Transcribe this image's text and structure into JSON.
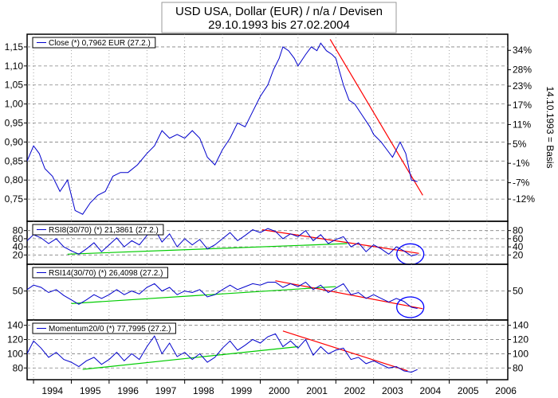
{
  "title_line1": "USD USA, Dollar (EUR) / n/a / Devisen",
  "title_line2": "29.10.1993 bis 27.02.2004",
  "right_axis_label": "14.10.1993 = Basis",
  "colors": {
    "price": "#0000cc",
    "trend_down": "#ff0000",
    "trend_up": "#00cc00",
    "grid": "#808080",
    "circle": "#0000ff"
  },
  "chart_data": [
    {
      "type": "line",
      "id": "price",
      "legend": "Close (*) 0,7962 EUR (27.2.)",
      "ylim": [
        0.7,
        1.175
      ],
      "yticks": [
        "1,15",
        "1,10",
        "1,05",
        "1,00",
        "0,95",
        "0,90",
        "0,85",
        "0,80",
        "0,75"
      ],
      "ytick_values": [
        1.15,
        1.1,
        1.05,
        1.0,
        0.95,
        0.9,
        0.85,
        0.8,
        0.75
      ],
      "right_ticks": [
        "34%",
        "28%",
        "23%",
        "17%",
        "11%",
        "5%",
        "-1%",
        "-7%",
        "-12%"
      ],
      "right_tick_values": [
        1.141,
        1.09,
        1.047,
        0.997,
        0.946,
        0.895,
        0.844,
        0.793,
        0.75
      ],
      "x": [
        1993.83,
        1994.0,
        1994.15,
        1994.3,
        1994.5,
        1994.7,
        1994.9,
        1995.1,
        1995.3,
        1995.5,
        1995.7,
        1995.9,
        1996.1,
        1996.3,
        1996.5,
        1996.75,
        1997.0,
        1997.2,
        1997.4,
        1997.6,
        1997.8,
        1998.0,
        1998.2,
        1998.4,
        1998.6,
        1998.8,
        1999.0,
        1999.2,
        1999.4,
        1999.6,
        1999.8,
        2000.0,
        2000.2,
        2000.35,
        2000.5,
        2000.6,
        2000.75,
        2000.9,
        2001.0,
        2001.2,
        2001.35,
        2001.5,
        2001.6,
        2001.75,
        2001.9,
        2002.0,
        2002.2,
        2002.35,
        2002.5,
        2002.7,
        2002.9,
        2003.0,
        2003.2,
        2003.35,
        2003.5,
        2003.6,
        2003.7,
        2003.85,
        2004.0,
        2004.16
      ],
      "values": [
        0.85,
        0.89,
        0.87,
        0.83,
        0.81,
        0.77,
        0.8,
        0.72,
        0.71,
        0.74,
        0.76,
        0.77,
        0.81,
        0.82,
        0.82,
        0.84,
        0.87,
        0.89,
        0.93,
        0.91,
        0.92,
        0.91,
        0.93,
        0.91,
        0.86,
        0.84,
        0.88,
        0.91,
        0.95,
        0.94,
        0.98,
        1.02,
        1.05,
        1.09,
        1.12,
        1.15,
        1.14,
        1.12,
        1.1,
        1.13,
        1.15,
        1.14,
        1.16,
        1.14,
        1.13,
        1.12,
        1.05,
        1.01,
        1.0,
        0.97,
        0.94,
        0.92,
        0.9,
        0.88,
        0.86,
        0.88,
        0.9,
        0.87,
        0.8,
        0.796
      ],
      "trend_down": [
        [
          2001.85,
          1.17
        ],
        [
          2004.3,
          0.76
        ]
      ]
    },
    {
      "type": "line",
      "id": "rsi8",
      "legend": "RSI8(30/70) (*) 21,3861 (27.2.)",
      "ylim": [
        5,
        95
      ],
      "yticks": [
        "80",
        "60",
        "40",
        "20"
      ],
      "ytick_values": [
        80,
        60,
        40,
        20
      ],
      "right_ticks": [
        "80",
        "60",
        "40",
        "20"
      ],
      "right_tick_values": [
        80,
        60,
        40,
        20
      ],
      "x": [
        1993.83,
        1994.0,
        1994.2,
        1994.4,
        1994.6,
        1994.8,
        1995.0,
        1995.2,
        1995.4,
        1995.6,
        1995.8,
        1996.0,
        1996.2,
        1996.4,
        1996.6,
        1996.8,
        1997.0,
        1997.2,
        1997.4,
        1997.6,
        1997.8,
        1998.0,
        1998.2,
        1998.4,
        1998.6,
        1998.8,
        1999.0,
        1999.2,
        1999.4,
        1999.6,
        1999.8,
        2000.0,
        2000.2,
        2000.4,
        2000.6,
        2000.8,
        2001.0,
        2001.2,
        2001.4,
        2001.6,
        2001.8,
        2002.0,
        2002.2,
        2002.4,
        2002.6,
        2002.8,
        2003.0,
        2003.2,
        2003.4,
        2003.6,
        2003.8,
        2004.0,
        2004.16
      ],
      "values": [
        55,
        70,
        62,
        48,
        60,
        40,
        30,
        22,
        35,
        50,
        28,
        45,
        62,
        40,
        55,
        45,
        68,
        85,
        52,
        72,
        40,
        60,
        45,
        58,
        35,
        45,
        60,
        75,
        55,
        68,
        82,
        75,
        85,
        78,
        60,
        72,
        65,
        80,
        55,
        70,
        48,
        58,
        65,
        40,
        50,
        28,
        45,
        35,
        22,
        40,
        30,
        18,
        21.4
      ],
      "trend_down": [
        [
          2000.05,
          82
        ],
        [
          2004.2,
          24
        ]
      ],
      "trend_up": [
        [
          1994.9,
          22
        ],
        [
          2002.3,
          48
        ]
      ],
      "circle": [
        2003.97,
        22
      ]
    },
    {
      "type": "line",
      "id": "rsi14",
      "legend": "RSI14(30/70) (*) 26,4098 (27.2.)",
      "ylim": [
        15,
        82
      ],
      "yticks": [
        "50"
      ],
      "ytick_values": [
        50
      ],
      "right_ticks": [
        "50"
      ],
      "right_tick_values": [
        50
      ],
      "x": [
        1993.83,
        1994.0,
        1994.2,
        1994.4,
        1994.6,
        1994.8,
        1995.0,
        1995.2,
        1995.4,
        1995.6,
        1995.8,
        1996.0,
        1996.2,
        1996.4,
        1996.6,
        1996.8,
        1997.0,
        1997.2,
        1997.4,
        1997.6,
        1997.8,
        1998.0,
        1998.2,
        1998.4,
        1998.6,
        1998.8,
        1999.0,
        1999.2,
        1999.4,
        1999.6,
        1999.8,
        2000.0,
        2000.2,
        2000.4,
        2000.6,
        2000.8,
        2001.0,
        2001.2,
        2001.4,
        2001.6,
        2001.8,
        2002.0,
        2002.2,
        2002.4,
        2002.6,
        2002.8,
        2003.0,
        2003.2,
        2003.4,
        2003.6,
        2003.8,
        2004.0,
        2004.16
      ],
      "values": [
        52,
        58,
        55,
        48,
        52,
        44,
        38,
        32,
        38,
        45,
        40,
        45,
        52,
        45,
        50,
        46,
        55,
        60,
        50,
        55,
        45,
        50,
        48,
        52,
        42,
        45,
        52,
        58,
        52,
        56,
        60,
        58,
        62,
        62,
        55,
        60,
        56,
        62,
        52,
        58,
        48,
        54,
        60,
        45,
        48,
        40,
        45,
        40,
        35,
        40,
        36,
        28,
        26.4
      ],
      "trend_down": [
        [
          2000.4,
          64
        ],
        [
          2004.3,
          26
        ]
      ],
      "trend_up": [
        [
          1995.0,
          33
        ],
        [
          2002.0,
          56
        ]
      ],
      "circle": [
        2003.97,
        28
      ]
    },
    {
      "type": "line",
      "id": "momentum",
      "legend": "Momentum20/0 (*) 77,7995 (27.2.)",
      "ylim": [
        68,
        143
      ],
      "yticks": [
        "140",
        "120",
        "100",
        "80"
      ],
      "ytick_values": [
        140,
        120,
        100,
        80
      ],
      "right_ticks": [
        "140",
        "120",
        "100",
        "80"
      ],
      "right_tick_values": [
        140,
        120,
        100,
        80
      ],
      "x": [
        1993.83,
        1994.0,
        1994.2,
        1994.4,
        1994.6,
        1994.8,
        1995.0,
        1995.2,
        1995.4,
        1995.6,
        1995.8,
        1996.0,
        1996.2,
        1996.4,
        1996.6,
        1996.8,
        1997.0,
        1997.2,
        1997.4,
        1997.6,
        1997.8,
        1998.0,
        1998.2,
        1998.4,
        1998.6,
        1998.8,
        1999.0,
        1999.2,
        1999.4,
        1999.6,
        1999.8,
        2000.0,
        2000.2,
        2000.4,
        2000.6,
        2000.8,
        2001.0,
        2001.2,
        2001.4,
        2001.6,
        2001.8,
        2002.0,
        2002.2,
        2002.4,
        2002.6,
        2002.8,
        2003.0,
        2003.2,
        2003.4,
        2003.6,
        2003.8,
        2004.0,
        2004.16
      ],
      "values": [
        100,
        118,
        108,
        95,
        102,
        92,
        88,
        82,
        90,
        95,
        85,
        92,
        102,
        90,
        100,
        92,
        110,
        125,
        100,
        115,
        96,
        102,
        92,
        100,
        88,
        95,
        108,
        118,
        105,
        112,
        120,
        115,
        124,
        128,
        110,
        118,
        108,
        120,
        98,
        110,
        100,
        105,
        108,
        92,
        95,
        86,
        90,
        85,
        80,
        82,
        76,
        74,
        77.8
      ],
      "trend_down": [
        [
          2000.6,
          132
        ],
        [
          2003.9,
          76
        ]
      ],
      "trend_up": [
        [
          1995.3,
          78
        ],
        [
          2001.0,
          110
        ]
      ]
    }
  ],
  "x_axis": {
    "labels": [
      "1994",
      "1995",
      "1996",
      "1997",
      "1998",
      "1999",
      "2000",
      "2001",
      "2002",
      "2003",
      "2004",
      "2005",
      "2006"
    ],
    "xlim": [
      1993.83,
      2006.55
    ]
  }
}
